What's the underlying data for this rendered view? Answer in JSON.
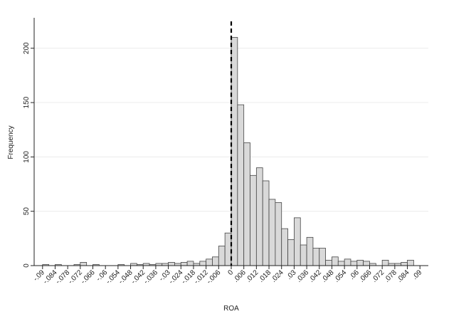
{
  "chart_data": {
    "type": "histogram",
    "x_label": "ROA",
    "y_label": "Frequency",
    "bins": [
      -0.09,
      -0.087,
      -0.084,
      -0.081,
      -0.078,
      -0.075,
      -0.072,
      -0.069,
      -0.066,
      -0.063,
      -0.06,
      -0.057,
      -0.054,
      -0.051,
      -0.048,
      -0.045,
      -0.042,
      -0.039,
      -0.036,
      -0.033,
      -0.03,
      -0.027,
      -0.024,
      -0.021,
      -0.018,
      -0.015,
      -0.012,
      -0.009,
      -0.006,
      -0.003,
      0,
      0.003,
      0.006,
      0.009,
      0.012,
      0.015,
      0.018,
      0.021,
      0.024,
      0.027,
      0.03,
      0.033,
      0.036,
      0.039,
      0.042,
      0.045,
      0.048,
      0.051,
      0.054,
      0.057,
      0.06,
      0.063,
      0.066,
      0.069,
      0.072,
      0.075,
      0.078,
      0.081,
      0.084,
      0.087,
      0.09
    ],
    "values": [
      1,
      0,
      1,
      0,
      0,
      1,
      3,
      0,
      1,
      0,
      0,
      0,
      1,
      0,
      2,
      1,
      2,
      1,
      2,
      2,
      3,
      2,
      3,
      4,
      2,
      4,
      6,
      8,
      18,
      30,
      210,
      148,
      113,
      83,
      90,
      78,
      61,
      58,
      34,
      24,
      44,
      19,
      26,
      16,
      16,
      5,
      8,
      4,
      6,
      4,
      5,
      4,
      2,
      0,
      5,
      2,
      2,
      3,
      5,
      0
    ],
    "color": "#d9d9d9",
    "edge_color": "#444444",
    "xlim": [
      -0.094,
      0.094
    ],
    "xticks": [
      {
        "value": -0.09,
        "label": "-.09"
      },
      {
        "value": -0.084,
        "label": "-.084"
      },
      {
        "value": -0.078,
        "label": "-.078"
      },
      {
        "value": -0.072,
        "label": "-.072"
      },
      {
        "value": -0.066,
        "label": "-.066"
      },
      {
        "value": -0.06,
        "label": "-.06"
      },
      {
        "value": -0.054,
        "label": "-.054"
      },
      {
        "value": -0.048,
        "label": "-.048"
      },
      {
        "value": -0.042,
        "label": "-.042"
      },
      {
        "value": -0.036,
        "label": "-.036"
      },
      {
        "value": -0.03,
        "label": "-.03"
      },
      {
        "value": -0.024,
        "label": "-.024"
      },
      {
        "value": -0.018,
        "label": "-.018"
      },
      {
        "value": -0.012,
        "label": "-.012"
      },
      {
        "value": -0.006,
        "label": "-.006"
      },
      0,
      {
        "value": 0.006,
        "label": ".006"
      },
      {
        "value": 0.012,
        "label": ".012"
      },
      {
        "value": 0.018,
        "label": ".018"
      },
      {
        "value": 0.024,
        "label": ".024"
      },
      {
        "value": 0.03,
        "label": ".03"
      },
      {
        "value": 0.036,
        "label": ".036"
      },
      {
        "value": 0.042,
        "label": ".042"
      },
      {
        "value": 0.048,
        "label": ".048"
      },
      {
        "value": 0.054,
        "label": ".054"
      },
      {
        "value": 0.06,
        "label": ".06"
      },
      {
        "value": 0.066,
        "label": ".066"
      },
      {
        "value": 0.072,
        "label": ".072"
      },
      {
        "value": 0.078,
        "label": ".078"
      },
      {
        "value": 0.084,
        "label": ".084"
      },
      {
        "value": 0.09,
        "label": ".09"
      }
    ],
    "ylim": [
      0,
      228
    ],
    "yticks": [
      0,
      50,
      100,
      150,
      200
    ],
    "grid": true,
    "reference_line": 0
  }
}
